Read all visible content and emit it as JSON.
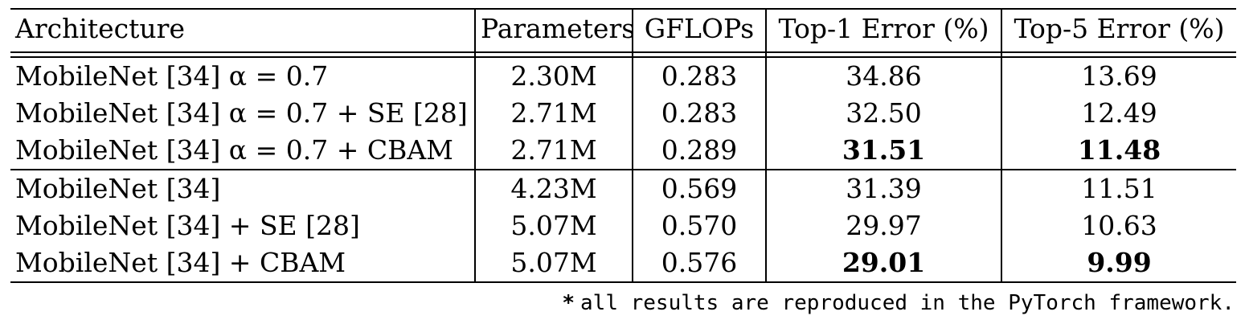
{
  "table": {
    "headers": {
      "architecture": "Architecture",
      "parameters": "Parameters",
      "gflops": "GFLOPs",
      "top1": "Top-1 Error (%)",
      "top5": "Top-5 Error (%)"
    },
    "group1": [
      {
        "architecture": "MobileNet [34] α = 0.7",
        "parameters": "2.30M",
        "gflops": "0.283",
        "top1": "34.86",
        "top5": "13.69"
      },
      {
        "architecture": "MobileNet [34] α = 0.7 + SE [28]",
        "parameters": "2.71M",
        "gflops": "0.283",
        "top1": "32.50",
        "top5": "12.49"
      },
      {
        "architecture": "MobileNet [34] α = 0.7 + CBAM",
        "parameters": "2.71M",
        "gflops": "0.289",
        "top1": "31.51",
        "top5": "11.48"
      }
    ],
    "group2": [
      {
        "architecture": "MobileNet [34]",
        "parameters": "4.23M",
        "gflops": "0.569",
        "top1": "31.39",
        "top5": "11.51"
      },
      {
        "architecture": "MobileNet [34] + SE [28]",
        "parameters": "5.07M",
        "gflops": "0.570",
        "top1": "29.97",
        "top5": "10.63"
      },
      {
        "architecture": "MobileNet [34] + CBAM",
        "parameters": "5.07M",
        "gflops": "0.576",
        "top1": "29.01",
        "top5": "9.99"
      }
    ]
  },
  "footnote": {
    "marker": "*",
    "text": "all results are reproduced in the PyTorch framework."
  }
}
